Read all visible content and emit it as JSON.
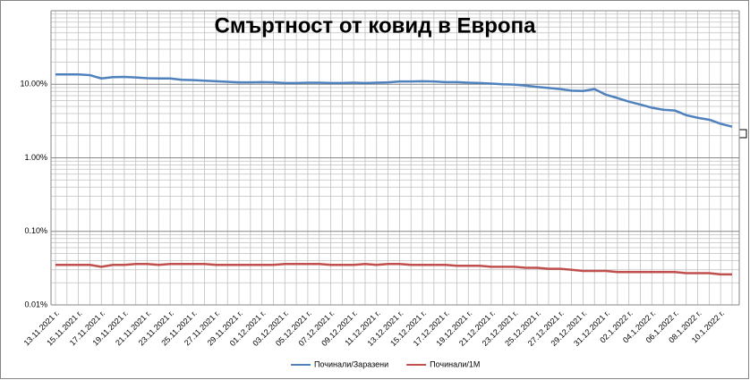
{
  "chart_data": {
    "type": "line",
    "title": "Смъртност от ковид в Европа",
    "categories": [
      "13.11.2021 г.",
      null,
      "15.11.2021 г.",
      null,
      "17.11.2021 г.",
      null,
      "19.11.2021 г.",
      null,
      "21.11.2021 г.",
      null,
      "23.11.2021 г.",
      null,
      "25.11.2021 г.",
      null,
      "27.11.2021 г.",
      null,
      "29.11.2021 г.",
      null,
      "01.12.2021 г.",
      null,
      "03.12.2021 г.",
      null,
      "05.12.2021 г.",
      null,
      "07.12.2021 г.",
      null,
      "09.12.2021 г.",
      null,
      "11.12.2021 г.",
      null,
      "13.12.2021 г.",
      null,
      "15.12.2021 г.",
      null,
      "17.12.2021 г.",
      null,
      "19.12.2021 г.",
      null,
      "21.12.2021 г.",
      null,
      "23.12.2021 г.",
      null,
      "25.12.2021 г.",
      null,
      "27.12.2021 г.",
      null,
      "29.12.2021 г.",
      null,
      "31.12.2021 г.",
      null,
      "02.1.2022 г.",
      null,
      "04.1.2022 г.",
      null,
      "06.1.2022 г.",
      null,
      "08.1.2022 г.",
      null,
      "10.1.2022 г.",
      null
    ],
    "series": [
      {
        "name": "Починали/Заразени",
        "color": "#4f81bd",
        "values": [
          13.6,
          13.6,
          13.6,
          13.3,
          12.0,
          12.5,
          12.6,
          12.4,
          12.1,
          12.0,
          12.0,
          11.5,
          11.4,
          11.2,
          11.0,
          10.8,
          10.6,
          10.6,
          10.7,
          10.6,
          10.4,
          10.4,
          10.5,
          10.5,
          10.4,
          10.4,
          10.5,
          10.4,
          10.5,
          10.6,
          10.9,
          10.9,
          11.0,
          10.9,
          10.7,
          10.7,
          10.5,
          10.4,
          10.2,
          10.0,
          9.9,
          9.6,
          9.2,
          8.9,
          8.6,
          8.2,
          8.1,
          8.6,
          7.2,
          6.5,
          5.8,
          5.3,
          4.8,
          4.5,
          4.4,
          3.8,
          3.5,
          3.3,
          2.9,
          2.65
        ]
      },
      {
        "name": "Починали/1М",
        "color": "#c0504d",
        "values": [
          0.035,
          0.035,
          0.035,
          0.035,
          0.033,
          0.035,
          0.035,
          0.036,
          0.036,
          0.035,
          0.036,
          0.036,
          0.036,
          0.036,
          0.035,
          0.035,
          0.035,
          0.035,
          0.035,
          0.035,
          0.036,
          0.036,
          0.036,
          0.036,
          0.035,
          0.035,
          0.035,
          0.036,
          0.035,
          0.036,
          0.036,
          0.035,
          0.035,
          0.035,
          0.035,
          0.034,
          0.034,
          0.034,
          0.033,
          0.033,
          0.033,
          0.032,
          0.032,
          0.031,
          0.031,
          0.03,
          0.029,
          0.029,
          0.029,
          0.028,
          0.028,
          0.028,
          0.028,
          0.028,
          0.028,
          0.027,
          0.027,
          0.027,
          0.026,
          0.026
        ]
      }
    ],
    "ylim": [
      0.01,
      100
    ],
    "log_scale": true,
    "grid": true,
    "yticks": [
      {
        "value": 10,
        "label": "10.00%"
      },
      {
        "value": 1,
        "label": "1.00%"
      },
      {
        "value": 0.1,
        "label": "0.10%"
      },
      {
        "value": 0.01,
        "label": "0.01%"
      }
    ],
    "legend": "bottom"
  }
}
